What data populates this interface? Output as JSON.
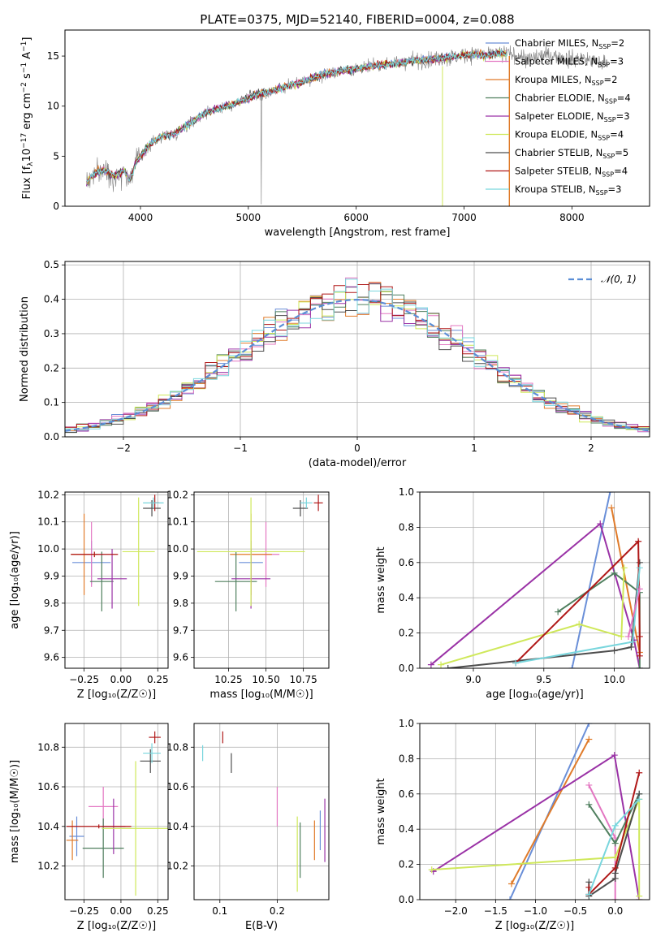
{
  "figure": {
    "title": "PLATE=0375, MJD=52140, FIBERID=0004, z=0.088"
  },
  "colors": {
    "Chabrier MILES": "#6a8fd8",
    "Salpeter MILES": "#e377c2",
    "Kroupa MILES": "#e07b2a",
    "Chabrier ELODIE": "#4f7f5e",
    "Salpeter ELODIE": "#9a32a6",
    "Kroupa ELODIE": "#cfe85a",
    "Chabrier STELIB": "#4d4d4d",
    "Salpeter STELIB": "#b01818",
    "Kroupa STELIB": "#79d6dd"
  },
  "chart_data": [
    {
      "id": "spectrum",
      "type": "line",
      "xlabel": "wavelength [Angstrom, rest frame]",
      "ylabel_parts": [
        "Flux [f",
        "λ",
        "10",
        "−17",
        " erg cm",
        "−2",
        " s",
        "−1",
        " A",
        "−1",
        "]"
      ],
      "xlim": [
        3300,
        8720
      ],
      "ylim": [
        0,
        17.6
      ],
      "xticks": [
        4000,
        5000,
        6000,
        7000,
        8000
      ],
      "yticks": [
        0,
        5,
        10,
        15
      ],
      "grid": false,
      "legend_position": "right",
      "legend": [
        {
          "name": "Chabrier MILES",
          "ssp": "2"
        },
        {
          "name": "Salpeter MILES",
          "ssp": "3"
        },
        {
          "name": "Kroupa MILES",
          "ssp": "2"
        },
        {
          "name": "Chabrier ELODIE",
          "ssp": "4"
        },
        {
          "name": "Salpeter ELODIE",
          "ssp": "3"
        },
        {
          "name": "Kroupa ELODIE",
          "ssp": "4"
        },
        {
          "name": "Chabrier STELIB",
          "ssp": "5"
        },
        {
          "name": "Salpeter STELIB",
          "ssp": "4"
        },
        {
          "name": "Kroupa STELIB",
          "ssp": "3"
        }
      ],
      "ssp_label": "N",
      "ssp_sub": "SSP",
      "continuum_x": [
        3500,
        3550,
        3600,
        3650,
        3700,
        3750,
        3800,
        3850,
        3900,
        3950,
        4000,
        4100,
        4200,
        4300,
        4400,
        4500,
        4600,
        4700,
        4800,
        4900,
        5000,
        5100,
        5200,
        5300,
        5400,
        5500,
        5600,
        5700,
        5800,
        5900,
        6000,
        6100,
        6200,
        6300,
        6400,
        6500,
        6600,
        6700,
        6800,
        6900,
        7000,
        7100,
        7200,
        7300,
        7400,
        7500,
        7600,
        7700,
        7800,
        7900,
        8000,
        8100,
        8200,
        8300
      ],
      "continuum_y": [
        2.4,
        3.0,
        3.4,
        3.6,
        3.5,
        3.0,
        3.2,
        3.6,
        2.6,
        4.2,
        5.0,
        6.3,
        7.0,
        7.2,
        7.9,
        8.6,
        9.3,
        9.7,
        10.0,
        10.4,
        10.8,
        11.2,
        11.4,
        11.8,
        12.1,
        12.4,
        12.8,
        13.2,
        13.4,
        13.6,
        13.7,
        13.9,
        14.1,
        14.2,
        14.3,
        14.5,
        14.6,
        14.7,
        14.8,
        14.9,
        15.1,
        15.2,
        15.0,
        15.3,
        15.2,
        15.1,
        14.6,
        15.0,
        15.1,
        14.9,
        14.7,
        14.8,
        14.5,
        14.3
      ],
      "observed_color": "#808080",
      "models_end": 7400
    },
    {
      "id": "residuals",
      "type": "histogram",
      "xlabel": "(data-model)/error",
      "ylabel": "Normed distribution",
      "xlim": [
        -2.5,
        2.5
      ],
      "ylim": [
        0,
        0.51
      ],
      "xticks": [
        -2,
        -1,
        0,
        1,
        2
      ],
      "xtick_labels": [
        "−2",
        "−1",
        "0",
        "1",
        "2"
      ],
      "yticks": [
        0.0,
        0.1,
        0.2,
        0.3,
        0.4,
        0.5
      ],
      "ytick_labels": [
        "0.0",
        "0.1",
        "0.2",
        "0.3",
        "0.4",
        "0.5"
      ],
      "grid": true,
      "bin_width": 0.1,
      "bins_start": -2.5,
      "gaussian_label": "𝒩(0, 1)",
      "gaussian_color": "#5b8ed6",
      "legend_position": "top-right"
    },
    {
      "id": "age_vs_Z",
      "type": "errorbar",
      "xlabel": "Z [log₁₀(Z/Z☉)]",
      "ylabel": "age  [log₁₀(age/yr)]",
      "xlim": [
        -0.38,
        0.32
      ],
      "ylim": [
        9.56,
        10.21
      ],
      "xticks": [
        -0.25,
        0.0,
        0.25
      ],
      "xtick_labels": [
        "−0.25",
        "0.00",
        "0.25"
      ],
      "yticks": [
        9.6,
        9.7,
        9.8,
        9.9,
        10.0,
        10.1,
        10.2
      ],
      "ytick_labels": [
        "9.6",
        "9.7",
        "9.8",
        "9.9",
        "10.0",
        "10.1",
        "10.2"
      ],
      "grid": true,
      "points": [
        {
          "model": "Chabrier MILES",
          "x": -0.2,
          "xerr": 0.13,
          "y": 9.95,
          "yerr": 0.08
        },
        {
          "model": "Salpeter MILES",
          "x": -0.2,
          "xerr": 0.08,
          "y": 9.98,
          "yerr": 0.12
        },
        {
          "model": "Kroupa MILES",
          "x": -0.25,
          "xerr": 0.09,
          "y": 9.98,
          "yerr": 0.15
        },
        {
          "model": "Chabrier ELODIE",
          "x": -0.13,
          "xerr": 0.08,
          "y": 9.88,
          "yerr": 0.11
        },
        {
          "model": "Salpeter ELODIE",
          "x": -0.06,
          "xerr": 0.1,
          "y": 9.89,
          "yerr": 0.11
        },
        {
          "model": "Kroupa ELODIE",
          "x": 0.12,
          "xerr": 0.11,
          "y": 9.99,
          "yerr": 0.2
        },
        {
          "model": "Chabrier STELIB",
          "x": 0.21,
          "xerr": 0.06,
          "y": 10.15,
          "yerr": 0.03
        },
        {
          "model": "Salpeter STELIB",
          "x": 0.23,
          "xerr": 0.03,
          "y": 10.17,
          "yerr": 0.03
        },
        {
          "model": "Kroupa STELIB",
          "x": 0.22,
          "xerr": 0.07,
          "y": 10.17,
          "yerr": 0.02
        },
        {
          "model": "Salpeter STELIB",
          "x": -0.18,
          "xerr": 0.16,
          "y": 9.98,
          "yerr": 0.01
        }
      ]
    },
    {
      "id": "age_vs_mass",
      "type": "errorbar",
      "xlabel": "mass [log₁₀(M/M☉)]",
      "ylabel": "",
      "xlim": [
        10.02,
        10.92
      ],
      "ylim": [
        9.56,
        10.21
      ],
      "xticks": [
        10.25,
        10.5,
        10.75
      ],
      "xtick_labels": [
        "10.25",
        "10.50",
        "10.75"
      ],
      "yticks": [
        9.6,
        9.7,
        9.8,
        9.9,
        10.0,
        10.1,
        10.2
      ],
      "ytick_labels": [
        "9.6",
        "9.7",
        "9.8",
        "9.9",
        "10.0",
        "10.1",
        "10.2"
      ],
      "grid": true,
      "points": [
        {
          "model": "Chabrier MILES",
          "x": 10.4,
          "xerr": 0.08,
          "y": 9.95,
          "yerr": 0.08
        },
        {
          "model": "Salpeter MILES",
          "x": 10.5,
          "xerr": 0.09,
          "y": 9.98,
          "yerr": 0.12
        },
        {
          "model": "Kroupa MILES",
          "x": 10.4,
          "xerr": 0.14,
          "y": 9.98,
          "yerr": 0.15
        },
        {
          "model": "Chabrier ELODIE",
          "x": 10.3,
          "xerr": 0.14,
          "y": 9.88,
          "yerr": 0.11
        },
        {
          "model": "Salpeter ELODIE",
          "x": 10.4,
          "xerr": 0.13,
          "y": 9.89,
          "yerr": 0.11
        },
        {
          "model": "Kroupa ELODIE",
          "x": 10.4,
          "xerr": 0.36,
          "y": 9.99,
          "yerr": 0.2
        },
        {
          "model": "Chabrier STELIB",
          "x": 10.73,
          "xerr": 0.05,
          "y": 10.15,
          "yerr": 0.03
        },
        {
          "model": "Salpeter STELIB",
          "x": 10.85,
          "xerr": 0.03,
          "y": 10.17,
          "yerr": 0.03
        },
        {
          "model": "Kroupa STELIB",
          "x": 10.77,
          "xerr": 0.04,
          "y": 10.17,
          "yerr": 0.02
        }
      ]
    },
    {
      "id": "weight_vs_age",
      "type": "line",
      "xlabel": "age  [log₁₀(age/yr)]",
      "ylabel": "mass weight",
      "xlim": [
        8.62,
        10.25
      ],
      "ylim": [
        0,
        1
      ],
      "xticks": [
        9.0,
        9.5,
        10.0
      ],
      "xtick_labels": [
        "9.0",
        "9.5",
        "10.0"
      ],
      "yticks": [
        0,
        0.2,
        0.4,
        0.6,
        0.8,
        1.0
      ],
      "ytick_labels": [
        "0.0",
        "0.2",
        "0.4",
        "0.6",
        "0.8",
        "1.0"
      ],
      "grid": true,
      "series": [
        {
          "model": "Chabrier MILES",
          "x": [
            9.7,
            9.97
          ],
          "y": [
            0.0,
            1.0
          ]
        },
        {
          "model": "Kroupa MILES",
          "x": [
            9.98,
            10.18
          ],
          "y": [
            0.91,
            0.09
          ]
        },
        {
          "model": "Salpeter ELODIE",
          "x": [
            8.7,
            9.9,
            10.14,
            10.18
          ],
          "y": [
            0.02,
            0.82,
            0.16,
            0.0
          ]
        },
        {
          "model": "Chabrier ELODIE",
          "x": [
            9.6,
            10.0,
            10.18,
            10.18
          ],
          "y": [
            0.32,
            0.54,
            0.43,
            0.0
          ]
        },
        {
          "model": "Kroupa ELODIE",
          "x": [
            8.77,
            9.75,
            10.05,
            10.07
          ],
          "y": [
            0.02,
            0.25,
            0.18,
            0.57
          ]
        },
        {
          "model": "Chabrier STELIB",
          "x": [
            8.82,
            10.0,
            10.12,
            10.18
          ],
          "y": [
            0.0,
            0.1,
            0.12,
            0.6
          ]
        },
        {
          "model": "Salpeter STELIB",
          "x": [
            9.3,
            10.17,
            10.18,
            10.18
          ],
          "y": [
            0.03,
            0.72,
            0.18,
            0.07
          ]
        },
        {
          "model": "Kroupa STELIB",
          "x": [
            9.3,
            10.13,
            10.18
          ],
          "y": [
            0.03,
            0.15,
            0.57
          ]
        },
        {
          "model": "Salpeter MILES",
          "x": [
            10.1,
            10.18
          ],
          "y": [
            0.18,
            0.45
          ]
        }
      ]
    },
    {
      "id": "mass_vs_Z",
      "type": "errorbar",
      "xlabel": "Z [log₁₀(Z/Z☉)]",
      "ylabel": "mass [log₁₀(M/M☉)]",
      "xlim": [
        -0.38,
        0.32
      ],
      "ylim": [
        10.03,
        10.92
      ],
      "xticks": [
        -0.25,
        0.0,
        0.25
      ],
      "xtick_labels": [
        "−0.25",
        "0.00",
        "0.25"
      ],
      "yticks": [
        10.2,
        10.4,
        10.6,
        10.8
      ],
      "ytick_labels": [
        "10.2",
        "10.4",
        "10.6",
        "10.8"
      ],
      "grid": true,
      "points": [
        {
          "model": "Chabrier MILES",
          "x": -0.3,
          "xerr": 0.05,
          "y": 10.35,
          "yerr": 0.1
        },
        {
          "model": "Salpeter MILES",
          "x": -0.12,
          "xerr": 0.1,
          "y": 10.5,
          "yerr": 0.1
        },
        {
          "model": "Kroupa MILES",
          "x": -0.33,
          "xerr": 0.04,
          "y": 10.33,
          "yerr": 0.1
        },
        {
          "model": "Chabrier ELODIE",
          "x": -0.12,
          "xerr": 0.14,
          "y": 10.29,
          "yerr": 0.15
        },
        {
          "model": "Salpeter ELODIE",
          "x": -0.05,
          "xerr": 0.08,
          "y": 10.4,
          "yerr": 0.14
        },
        {
          "model": "Kroupa ELODIE",
          "x": 0.1,
          "xerr": 0.23,
          "y": 10.39,
          "yerr": 0.34
        },
        {
          "model": "Chabrier STELIB",
          "x": 0.2,
          "xerr": 0.07,
          "y": 10.73,
          "yerr": 0.06
        },
        {
          "model": "Salpeter STELIB",
          "x": 0.23,
          "xerr": 0.04,
          "y": 10.85,
          "yerr": 0.03
        },
        {
          "model": "Kroupa STELIB",
          "x": 0.21,
          "xerr": 0.06,
          "y": 10.77,
          "yerr": 0.05
        },
        {
          "model": "Salpeter STELIB",
          "x": -0.15,
          "xerr": 0.22,
          "y": 10.4,
          "yerr": 0.01
        }
      ]
    },
    {
      "id": "mass_vs_EBV",
      "type": "errorbar",
      "xlabel": "E(B-V)",
      "ylabel": "",
      "xlim": [
        0.055,
        0.29
      ],
      "ylim": [
        10.03,
        10.92
      ],
      "xticks": [
        0.1,
        0.2
      ],
      "xtick_labels": [
        "0.1",
        "0.2"
      ],
      "yticks": [
        10.2,
        10.4,
        10.6,
        10.8
      ],
      "ytick_labels": [
        "10.2",
        "10.4",
        "10.6",
        "10.8"
      ],
      "grid": true,
      "points": [
        {
          "model": "Kroupa STELIB",
          "x": 0.07,
          "xerr": 0.0,
          "y": 10.77,
          "yerr": 0.04
        },
        {
          "model": "Salpeter STELIB",
          "x": 0.105,
          "xerr": 0.0,
          "y": 10.85,
          "yerr": 0.03
        },
        {
          "model": "Chabrier STELIB",
          "x": 0.12,
          "xerr": 0.0,
          "y": 10.72,
          "yerr": 0.05
        },
        {
          "model": "Salpeter MILES",
          "x": 0.2,
          "xerr": 0.0,
          "y": 10.5,
          "yerr": 0.1
        },
        {
          "model": "Kroupa ELODIE",
          "x": 0.235,
          "xerr": 0.0,
          "y": 10.26,
          "yerr": 0.19
        },
        {
          "model": "Chabrier ELODIE",
          "x": 0.24,
          "xerr": 0.0,
          "y": 10.28,
          "yerr": 0.14
        },
        {
          "model": "Kroupa MILES",
          "x": 0.265,
          "xerr": 0.0,
          "y": 10.33,
          "yerr": 0.1
        },
        {
          "model": "Chabrier MILES",
          "x": 0.275,
          "xerr": 0.0,
          "y": 10.38,
          "yerr": 0.1
        },
        {
          "model": "Salpeter ELODIE",
          "x": 0.283,
          "xerr": 0.0,
          "y": 10.38,
          "yerr": 0.16
        }
      ]
    },
    {
      "id": "weight_vs_Z",
      "type": "line",
      "xlabel": "Z [log₁₀(Z/Z☉)]",
      "ylabel": "mass weight",
      "xlim": [
        -2.45,
        0.43
      ],
      "ylim": [
        0,
        1
      ],
      "xticks": [
        -2.0,
        -1.5,
        -1.0,
        -0.5,
        0.0
      ],
      "xtick_labels": [
        "−2.0",
        "−1.5",
        "−1.0",
        "−0.5",
        "0.0"
      ],
      "yticks": [
        0,
        0.2,
        0.4,
        0.6,
        0.8,
        1.0
      ],
      "ytick_labels": [
        "0.0",
        "0.2",
        "0.4",
        "0.6",
        "0.8",
        "1.0"
      ],
      "grid": true,
      "series": [
        {
          "model": "Chabrier MILES",
          "x": [
            -1.32,
            -0.33
          ],
          "y": [
            0.0,
            1.0
          ]
        },
        {
          "model": "Kroupa MILES",
          "x": [
            -1.3,
            -0.33
          ],
          "y": [
            0.09,
            0.91
          ]
        },
        {
          "model": "Salpeter ELODIE",
          "x": [
            -2.28,
            -0.01,
            0.3
          ],
          "y": [
            0.16,
            0.82,
            0.0
          ]
        },
        {
          "model": "Salpeter MILES",
          "x": [
            -0.33,
            0.0,
            0.0
          ],
          "y": [
            0.65,
            0.35,
            0.0
          ]
        },
        {
          "model": "Chabrier ELODIE",
          "x": [
            -0.33,
            0.0,
            0.3
          ],
          "y": [
            0.54,
            0.32,
            0.6
          ]
        },
        {
          "model": "Kroupa ELODIE",
          "x": [
            -2.3,
            0.0,
            0.3,
            0.3
          ],
          "y": [
            0.17,
            0.24,
            0.57,
            0.02
          ]
        },
        {
          "model": "Chabrier STELIB",
          "x": [
            -0.33,
            -0.33,
            0.0,
            0.0,
            0.3
          ],
          "y": [
            0.1,
            0.02,
            0.12,
            0.15,
            0.6
          ]
        },
        {
          "model": "Salpeter STELIB",
          "x": [
            -0.33,
            -0.33,
            0.0,
            0.3
          ],
          "y": [
            0.07,
            0.03,
            0.18,
            0.72
          ]
        },
        {
          "model": "Kroupa STELIB",
          "x": [
            -0.33,
            0.0,
            0.3
          ],
          "y": [
            0.03,
            0.42,
            0.57
          ]
        }
      ]
    }
  ]
}
